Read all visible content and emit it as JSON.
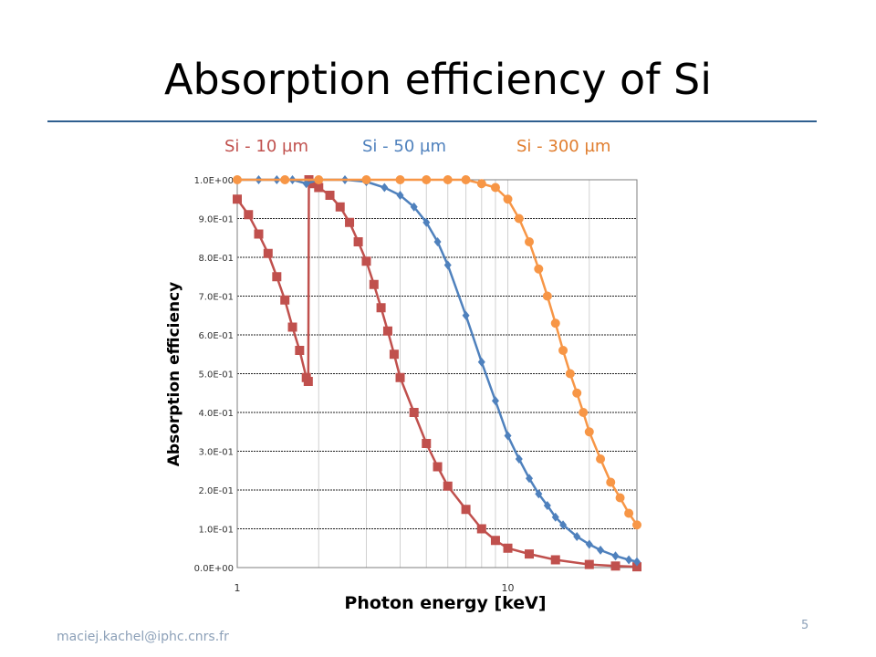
{
  "slide": {
    "title": "Absorption efficiency of Si",
    "footer_email": "maciej.kachel@iphc.cnrs.fr",
    "page_number": "5"
  },
  "legend": [
    {
      "label": "Si - 10 µm",
      "color": "#c0504d"
    },
    {
      "label": "Si - 50 µm",
      "color": "#4f81bd"
    },
    {
      "label": "Si - 300 µm",
      "color": "#f79646"
    }
  ],
  "chart_data": {
    "type": "line",
    "xlabel": "Photon energy [keV]",
    "ylabel": "Absorption efficiency",
    "xscale": "log",
    "xlim": [
      1,
      30
    ],
    "ylim": [
      0,
      1.0
    ],
    "x_tick_labels": [
      "1",
      "10"
    ],
    "y_tick_labels": [
      "0.0E+00",
      "1.0E-01",
      "2.0E-01",
      "3.0E-01",
      "4.0E-01",
      "5.0E-01",
      "6.0E-01",
      "7.0E-01",
      "8.0E-01",
      "9.0E-01",
      "1.0E+00"
    ],
    "grid": true,
    "series": [
      {
        "name": "Si - 10 µm",
        "color": "#c0504d",
        "marker": "square",
        "x": [
          1.0,
          1.1,
          1.2,
          1.3,
          1.4,
          1.5,
          1.6,
          1.7,
          1.8,
          1.83,
          1.84,
          1.9,
          2.0,
          2.2,
          2.4,
          2.6,
          2.8,
          3.0,
          3.2,
          3.4,
          3.6,
          3.8,
          4.0,
          4.5,
          5.0,
          5.5,
          6.0,
          7.0,
          8.0,
          9.0,
          10.0,
          12.0,
          15.0,
          20.0,
          25.0,
          30.0
        ],
        "y": [
          0.95,
          0.91,
          0.86,
          0.81,
          0.75,
          0.69,
          0.62,
          0.56,
          0.49,
          0.48,
          1.0,
          0.99,
          0.98,
          0.96,
          0.93,
          0.89,
          0.84,
          0.79,
          0.73,
          0.67,
          0.61,
          0.55,
          0.49,
          0.4,
          0.32,
          0.26,
          0.21,
          0.15,
          0.1,
          0.07,
          0.05,
          0.035,
          0.02,
          0.008,
          0.004,
          0.002
        ]
      },
      {
        "name": "Si - 50 µm",
        "color": "#4f81bd",
        "marker": "diamond",
        "x": [
          1.0,
          1.2,
          1.4,
          1.6,
          1.8,
          2.0,
          2.5,
          3.0,
          3.5,
          4.0,
          4.5,
          5.0,
          5.5,
          6.0,
          7.0,
          8.0,
          9.0,
          10.0,
          11.0,
          12.0,
          13.0,
          14.0,
          15.0,
          16.0,
          18.0,
          20.0,
          22.0,
          25.0,
          28.0,
          30.0
        ],
        "y": [
          1.0,
          1.0,
          1.0,
          1.0,
          0.99,
          1.0,
          1.0,
          0.995,
          0.98,
          0.96,
          0.93,
          0.89,
          0.84,
          0.78,
          0.65,
          0.53,
          0.43,
          0.34,
          0.28,
          0.23,
          0.19,
          0.16,
          0.13,
          0.11,
          0.08,
          0.06,
          0.045,
          0.03,
          0.02,
          0.015
        ]
      },
      {
        "name": "Si - 300 µm",
        "color": "#f79646",
        "marker": "circle",
        "x": [
          1.0,
          1.5,
          2.0,
          3.0,
          4.0,
          5.0,
          6.0,
          7.0,
          8.0,
          9.0,
          10.0,
          11.0,
          12.0,
          13.0,
          14.0,
          15.0,
          16.0,
          17.0,
          18.0,
          19.0,
          20.0,
          22.0,
          24.0,
          26.0,
          28.0,
          30.0
        ],
        "y": [
          1.0,
          1.0,
          1.0,
          1.0,
          1.0,
          1.0,
          1.0,
          1.0,
          0.99,
          0.98,
          0.95,
          0.9,
          0.84,
          0.77,
          0.7,
          0.63,
          0.56,
          0.5,
          0.45,
          0.4,
          0.35,
          0.28,
          0.22,
          0.18,
          0.14,
          0.11
        ]
      }
    ]
  }
}
